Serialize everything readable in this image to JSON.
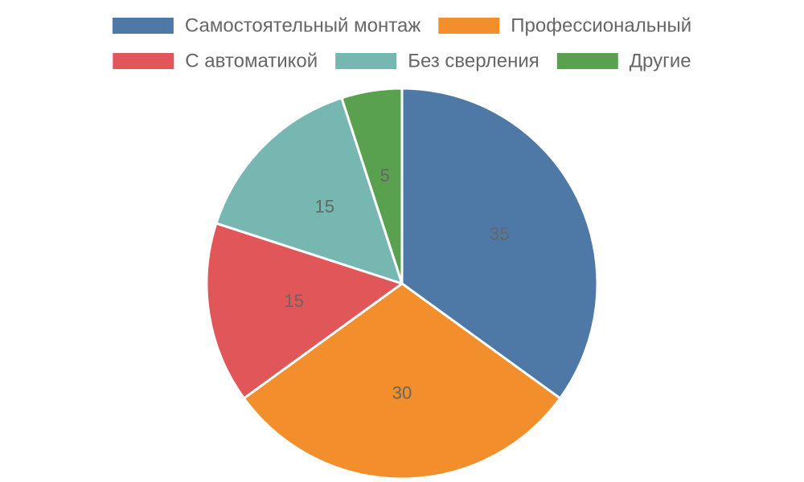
{
  "chart_data": {
    "type": "pie",
    "series": [
      {
        "values": [
          35,
          30,
          15,
          15,
          5
        ]
      }
    ],
    "categories": [
      "Самостоятельный монтаж",
      "Профессиональный",
      "С автоматикой",
      "Без сверления",
      "Другие"
    ],
    "values": [
      35,
      30,
      15,
      15,
      5
    ],
    "data_labels": [
      "35",
      "30",
      "15",
      "15",
      "5"
    ],
    "colors": [
      "#4e79a7",
      "#f28e2b",
      "#e15759",
      "#76b7b2",
      "#59a14f"
    ],
    "legend_position": "top",
    "start_angle": "12 o'clock, clockwise"
  }
}
